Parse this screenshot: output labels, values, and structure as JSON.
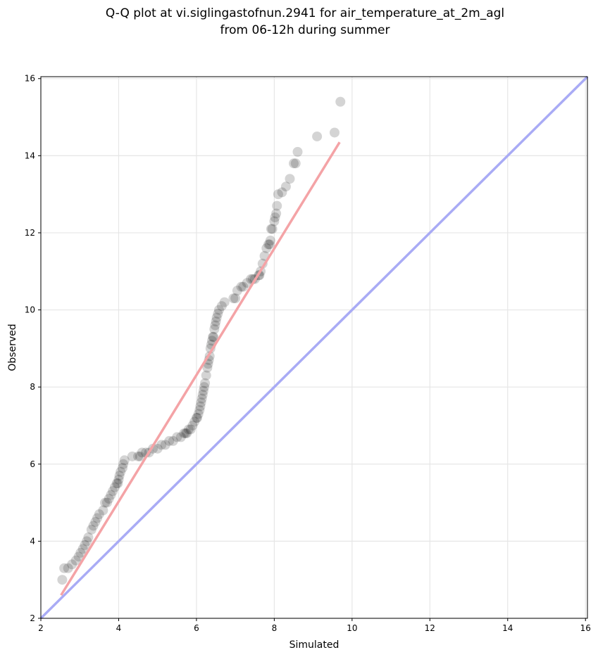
{
  "chart_data": {
    "type": "scatter",
    "title_lines": [
      "Q-Q plot at vi.siglingastofnun.2941 for air_temperature_at_2m_agl",
      "from 06-12h during summer"
    ],
    "xlabel": "Simulated",
    "ylabel": "Observed",
    "xlim": [
      2,
      16.05
    ],
    "ylim": [
      2,
      16.05
    ],
    "xticks": [
      "2",
      "4",
      "6",
      "8",
      "10",
      "12",
      "14",
      "16"
    ],
    "yticks": [
      "2",
      "4",
      "6",
      "8",
      "10",
      "12",
      "14",
      "16"
    ],
    "grid": true,
    "colors": {
      "points": "#000000",
      "fit_line": "#f4a3a6",
      "identity_line": "#a9abf5",
      "grid": "#e6e6e6"
    },
    "series": [
      {
        "type": "scatter",
        "x": [
          2.55,
          2.6,
          2.7,
          2.8,
          2.9,
          2.97,
          3.02,
          3.08,
          3.13,
          3.18,
          3.22,
          3.3,
          3.35,
          3.4,
          3.45,
          3.5,
          3.6,
          3.65,
          3.7,
          3.75,
          3.8,
          3.85,
          3.9,
          3.95,
          3.98,
          4.0,
          4.02,
          4.05,
          4.1,
          4.12,
          4.15,
          4.35,
          4.5,
          4.55,
          4.6,
          4.7,
          4.78,
          4.88,
          5.0,
          5.1,
          5.2,
          5.3,
          5.4,
          5.5,
          5.6,
          5.68,
          5.72,
          5.75,
          5.8,
          5.85,
          5.9,
          5.95,
          6.0,
          6.02,
          6.05,
          6.08,
          6.1,
          6.12,
          6.14,
          6.16,
          6.18,
          6.2,
          6.22,
          6.25,
          6.28,
          6.3,
          6.32,
          6.34,
          6.36,
          6.38,
          6.4,
          6.42,
          6.44,
          6.46,
          6.48,
          6.5,
          6.52,
          6.55,
          6.58,
          6.65,
          6.72,
          6.95,
          7.0,
          7.05,
          7.15,
          7.2,
          7.3,
          7.4,
          7.45,
          7.5,
          7.6,
          7.62,
          7.65,
          7.7,
          7.75,
          7.8,
          7.85,
          7.88,
          7.9,
          7.92,
          7.95,
          8.0,
          8.02,
          8.05,
          8.07,
          8.1,
          8.2,
          8.3,
          8.4,
          8.5,
          8.55,
          8.6,
          9.1,
          9.55,
          9.7
        ],
        "y": [
          3.0,
          3.3,
          3.3,
          3.4,
          3.5,
          3.6,
          3.7,
          3.8,
          3.9,
          4.0,
          4.1,
          4.3,
          4.4,
          4.5,
          4.6,
          4.7,
          4.8,
          5.0,
          5.0,
          5.1,
          5.2,
          5.3,
          5.4,
          5.5,
          5.5,
          5.6,
          5.7,
          5.8,
          5.9,
          6.0,
          6.1,
          6.2,
          6.2,
          6.2,
          6.3,
          6.3,
          6.3,
          6.4,
          6.4,
          6.5,
          6.5,
          6.6,
          6.6,
          6.7,
          6.7,
          6.8,
          6.8,
          6.8,
          6.9,
          6.9,
          7.0,
          7.1,
          7.2,
          7.2,
          7.3,
          7.4,
          7.5,
          7.6,
          7.7,
          7.8,
          7.9,
          8.0,
          8.1,
          8.3,
          8.5,
          8.6,
          8.7,
          8.8,
          9.0,
          9.1,
          9.2,
          9.3,
          9.3,
          9.5,
          9.6,
          9.7,
          9.8,
          9.9,
          10.0,
          10.1,
          10.2,
          10.3,
          10.3,
          10.5,
          10.6,
          10.6,
          10.7,
          10.8,
          10.8,
          10.8,
          10.9,
          10.9,
          11.0,
          11.2,
          11.4,
          11.6,
          11.7,
          11.7,
          11.8,
          12.1,
          12.1,
          12.3,
          12.4,
          12.5,
          12.7,
          13.0,
          13.05,
          13.2,
          13.4,
          13.8,
          13.8,
          14.1,
          14.5,
          14.6,
          15.4
        ]
      },
      {
        "type": "line",
        "name": "",
        "x": [
          2.52,
          9.68
        ],
        "y": [
          2.6,
          14.35
        ]
      },
      {
        "type": "line",
        "name": "",
        "x": [
          2,
          16.05
        ],
        "y": [
          2,
          16.05
        ]
      }
    ]
  }
}
